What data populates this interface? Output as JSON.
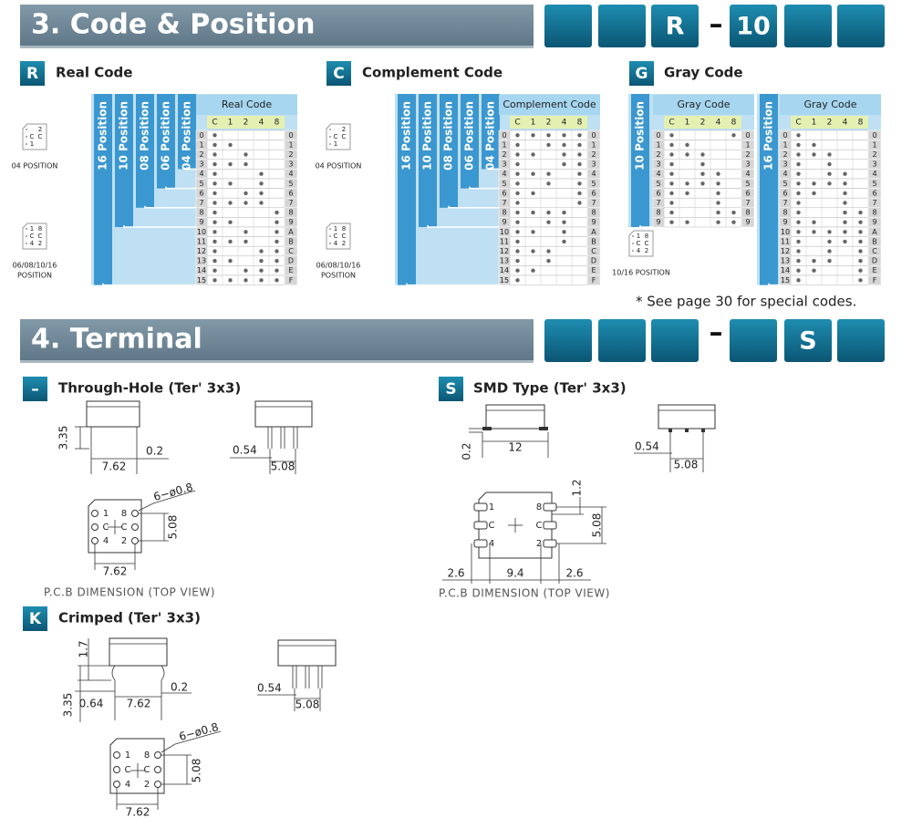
{
  "section3": {
    "title": "3. Code & Position",
    "code": [
      "R",
      "–",
      "10"
    ]
  },
  "codes": [
    {
      "badge": "R",
      "title": "Real Code",
      "table_header": "Real Code",
      "columns": [
        "C",
        "1",
        "2",
        "4",
        "8"
      ],
      "positions": [
        "16 Position",
        "10 Position",
        "08 Position",
        "06 Position",
        "04 Position"
      ],
      "rows": [
        "0",
        "1",
        "2",
        "3",
        "4",
        "5",
        "6",
        "7",
        "8",
        "9",
        "10",
        "11",
        "12",
        "13",
        "14",
        "15"
      ],
      "hex": [
        "0",
        "1",
        "2",
        "3",
        "4",
        "5",
        "6",
        "7",
        "8",
        "9",
        "A",
        "B",
        "C",
        "D",
        "E",
        "F"
      ],
      "dots": [
        [
          1,
          0,
          0,
          0,
          0
        ],
        [
          1,
          1,
          0,
          0,
          0
        ],
        [
          1,
          0,
          1,
          0,
          0
        ],
        [
          1,
          1,
          1,
          0,
          0
        ],
        [
          1,
          0,
          0,
          1,
          0
        ],
        [
          1,
          1,
          0,
          1,
          0
        ],
        [
          1,
          0,
          1,
          1,
          0
        ],
        [
          1,
          1,
          1,
          1,
          0
        ],
        [
          1,
          0,
          0,
          0,
          1
        ],
        [
          1,
          1,
          0,
          0,
          1
        ],
        [
          1,
          0,
          1,
          0,
          1
        ],
        [
          1,
          1,
          1,
          0,
          1
        ],
        [
          1,
          0,
          0,
          1,
          1
        ],
        [
          1,
          1,
          0,
          1,
          1
        ],
        [
          1,
          0,
          1,
          1,
          1
        ],
        [
          1,
          1,
          1,
          1,
          1
        ]
      ],
      "icons": [
        {
          "pins": [
            "2",
            "C",
            "C",
            "1"
          ],
          "caption": [
            "04 POSITION"
          ]
        },
        {
          "pins": [
            "1",
            "8",
            "C",
            "C",
            "4",
            "2"
          ],
          "caption": [
            "06/08/10/16",
            "POSITION"
          ]
        }
      ]
    },
    {
      "badge": "C",
      "title": "Complement Code",
      "table_header": "Complement Code",
      "columns": [
        "C",
        "1",
        "2",
        "4",
        "8"
      ],
      "positions": [
        "16 Position",
        "10 Position",
        "08 Position",
        "06 Position",
        "04 Position"
      ],
      "rows": [
        "0",
        "1",
        "2",
        "3",
        "4",
        "5",
        "6",
        "7",
        "8",
        "9",
        "10",
        "11",
        "12",
        "13",
        "14",
        "15"
      ],
      "hex": [
        "0",
        "1",
        "2",
        "3",
        "4",
        "5",
        "6",
        "7",
        "8",
        "9",
        "A",
        "B",
        "C",
        "D",
        "E",
        "F"
      ],
      "dots": [
        [
          1,
          1,
          1,
          1,
          1
        ],
        [
          1,
          0,
          1,
          1,
          1
        ],
        [
          1,
          1,
          0,
          1,
          1
        ],
        [
          1,
          0,
          0,
          1,
          1
        ],
        [
          1,
          1,
          1,
          0,
          1
        ],
        [
          1,
          0,
          1,
          0,
          1
        ],
        [
          1,
          1,
          0,
          0,
          1
        ],
        [
          1,
          0,
          0,
          0,
          1
        ],
        [
          1,
          1,
          1,
          1,
          0
        ],
        [
          1,
          0,
          1,
          1,
          0
        ],
        [
          1,
          1,
          0,
          1,
          0
        ],
        [
          1,
          0,
          0,
          1,
          0
        ],
        [
          1,
          1,
          1,
          0,
          0
        ],
        [
          1,
          0,
          1,
          0,
          0
        ],
        [
          1,
          1,
          0,
          0,
          0
        ],
        [
          1,
          0,
          0,
          0,
          0
        ]
      ],
      "icons": [
        {
          "pins": [
            "2",
            "C",
            "C",
            "1"
          ],
          "caption": [
            "04 POSITION"
          ]
        },
        {
          "pins": [
            "1",
            "8",
            "C",
            "C",
            "4",
            "2"
          ],
          "caption": [
            "06/08/10/16",
            "POSITION"
          ]
        }
      ]
    },
    {
      "badge": "G",
      "title": "Gray Code",
      "tables": [
        {
          "table_header": "Gray Code",
          "columns": [
            "C",
            "1",
            "2",
            "4",
            "8"
          ],
          "positions": [
            "10 Position"
          ],
          "rows": [
            "0",
            "1",
            "2",
            "3",
            "4",
            "5",
            "6",
            "7",
            "8",
            "9"
          ],
          "hex": [
            "0",
            "1",
            "2",
            "3",
            "4",
            "5",
            "6",
            "7",
            "8",
            "9"
          ],
          "dots": [
            [
              1,
              0,
              0,
              0,
              1
            ],
            [
              1,
              1,
              0,
              0,
              0
            ],
            [
              1,
              1,
              1,
              0,
              0
            ],
            [
              1,
              0,
              1,
              0,
              0
            ],
            [
              1,
              0,
              1,
              1,
              0
            ],
            [
              1,
              1,
              1,
              1,
              0
            ],
            [
              1,
              1,
              0,
              1,
              0
            ],
            [
              1,
              0,
              0,
              1,
              0
            ],
            [
              1,
              0,
              0,
              1,
              1
            ],
            [
              1,
              1,
              0,
              1,
              1
            ]
          ]
        },
        {
          "table_header": "Gray Code",
          "columns": [
            "C",
            "1",
            "2",
            "4",
            "8"
          ],
          "positions": [
            "16 Position"
          ],
          "rows": [
            "0",
            "1",
            "2",
            "3",
            "4",
            "5",
            "6",
            "7",
            "8",
            "9",
            "10",
            "11",
            "12",
            "13",
            "14",
            "15"
          ],
          "hex": [
            "0",
            "1",
            "2",
            "3",
            "4",
            "5",
            "6",
            "7",
            "8",
            "9",
            "A",
            "B",
            "C",
            "D",
            "E",
            "F"
          ],
          "dots": [
            [
              1,
              0,
              0,
              0,
              0
            ],
            [
              1,
              1,
              0,
              0,
              0
            ],
            [
              1,
              1,
              1,
              0,
              0
            ],
            [
              1,
              0,
              1,
              0,
              0
            ],
            [
              1,
              0,
              1,
              1,
              0
            ],
            [
              1,
              1,
              1,
              1,
              0
            ],
            [
              1,
              1,
              0,
              1,
              0
            ],
            [
              1,
              0,
              0,
              1,
              0
            ],
            [
              1,
              0,
              0,
              1,
              1
            ],
            [
              1,
              1,
              0,
              1,
              1
            ],
            [
              1,
              1,
              1,
              1,
              1
            ],
            [
              1,
              0,
              1,
              1,
              1
            ],
            [
              1,
              0,
              1,
              0,
              1
            ],
            [
              1,
              1,
              1,
              0,
              1
            ],
            [
              1,
              1,
              0,
              0,
              1
            ],
            [
              1,
              0,
              0,
              0,
              1
            ]
          ]
        }
      ],
      "icons": [
        {
          "pins": [
            "1",
            "8",
            "C",
            "C",
            "4",
            "2"
          ],
          "caption": [
            "10/16 POSITION"
          ]
        }
      ]
    }
  ],
  "note": "* See page 30 for special codes.",
  "section4": {
    "title": "4. Terminal",
    "code": [
      "–",
      "S"
    ]
  },
  "terminals": [
    {
      "badge": "–",
      "title": "Through-Hole (Ter' 3x3)",
      "dims": [
        "3.35",
        "7.62",
        "0.2",
        "0.54",
        "5.08",
        "6−ø0.8",
        "5.08",
        "7.62"
      ],
      "pins": [
        "1",
        "8",
        "C",
        "C",
        "4",
        "2"
      ],
      "caption": "P.C.B DIMENSION (TOP VIEW)"
    },
    {
      "badge": "S",
      "title": "SMD Type (Ter' 3x3)",
      "dims": [
        "0.2",
        "12",
        "0.54",
        "5.08",
        "1.2",
        "5.08",
        "2.6",
        "9.4",
        "2.6"
      ],
      "pins": [
        "1",
        "8",
        "C",
        "C",
        "4",
        "2"
      ],
      "caption": "P.C.B DIMENSION (TOP VIEW)"
    },
    {
      "badge": "K",
      "title": "Crimped (Ter' 3x3)",
      "dims": [
        "1.7",
        "3.35",
        "0.64",
        "7.62",
        "0.2",
        "0.54",
        "5.08",
        "6−ø0.8",
        "5.08",
        "7.62"
      ],
      "pins": [
        "1",
        "8",
        "C",
        "C",
        "4",
        "2"
      ]
    }
  ]
}
